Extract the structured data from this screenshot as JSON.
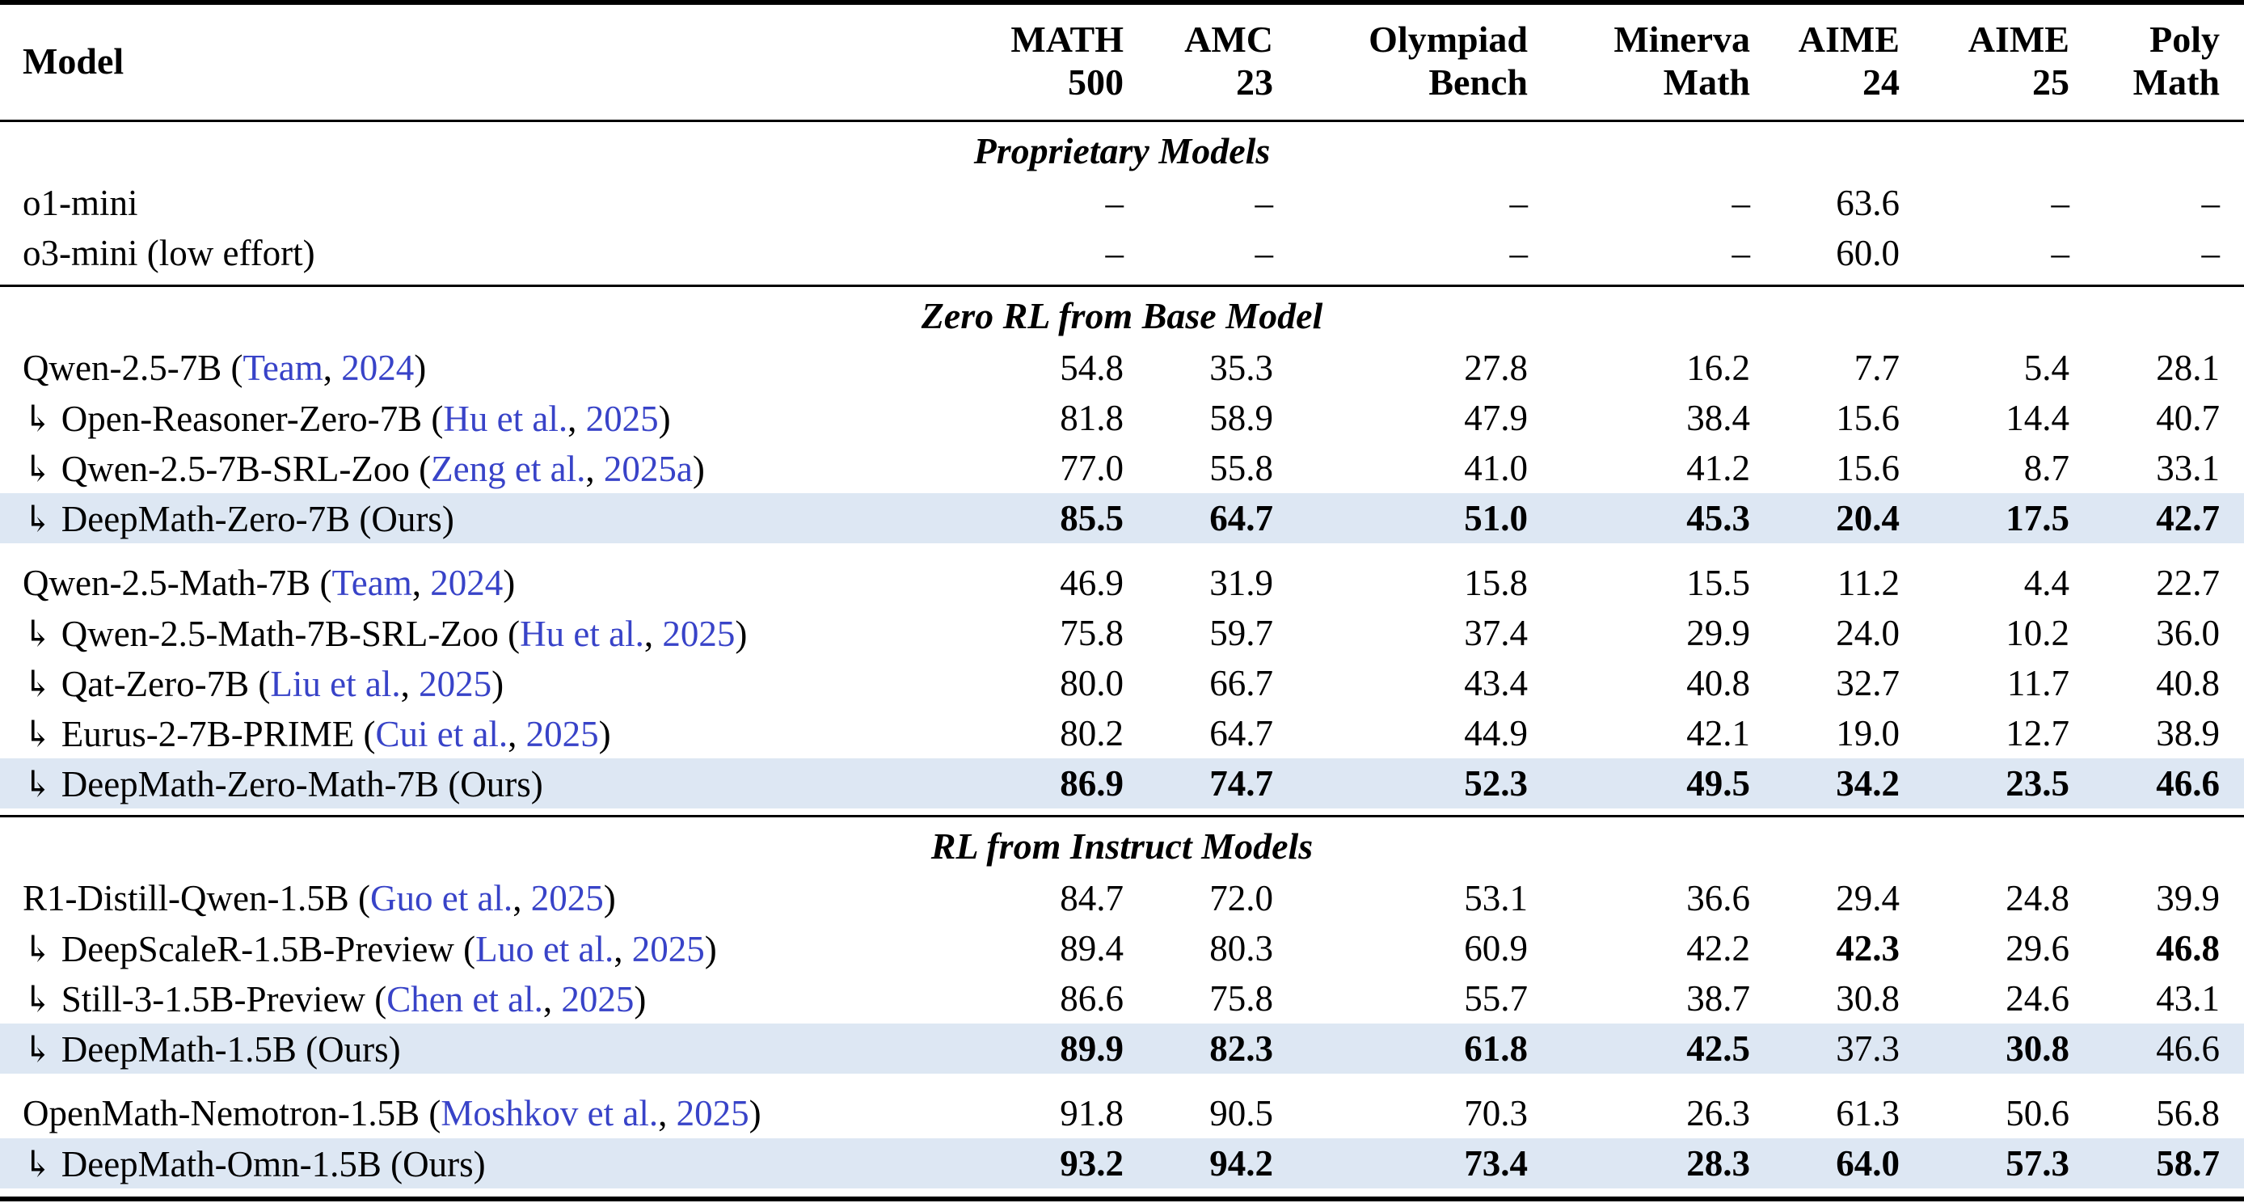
{
  "colors": {
    "highlight": "#dde7f3",
    "citation": "#3843c8",
    "rule": "#000000",
    "text": "#000000"
  },
  "table": {
    "model_col_header": "Model",
    "arrow_symbol": "↳",
    "na_symbol": "–",
    "columns": [
      {
        "line1": "MATH",
        "line2": "500"
      },
      {
        "line1": "AMC",
        "line2": "23"
      },
      {
        "line1": "Olympiad",
        "line2": "Bench"
      },
      {
        "line1": "Minerva",
        "line2": "Math"
      },
      {
        "line1": "AIME",
        "line2": "24"
      },
      {
        "line1": "AIME",
        "line2": "25"
      },
      {
        "line1": "Poly",
        "line2": "Math"
      }
    ],
    "sections": [
      {
        "title": "Proprietary Models",
        "groups": [
          {
            "rows": [
              {
                "arrow": false,
                "name": "o1-mini",
                "values": [
                  "–",
                  "–",
                  "–",
                  "–",
                  "63.6",
                  "–",
                  "–"
                ],
                "bold": [
                  0,
                  0,
                  0,
                  0,
                  0,
                  0,
                  0
                ],
                "highlight": false
              },
              {
                "arrow": false,
                "name": "o3-mini (low effort)",
                "values": [
                  "–",
                  "–",
                  "–",
                  "–",
                  "60.0",
                  "–",
                  "–"
                ],
                "bold": [
                  0,
                  0,
                  0,
                  0,
                  0,
                  0,
                  0
                ],
                "highlight": false
              }
            ]
          }
        ]
      },
      {
        "title": "Zero RL from Base Model",
        "groups": [
          {
            "rows": [
              {
                "arrow": false,
                "name": "Qwen-2.5-7B",
                "cite": {
                  "authors": "Team",
                  "year": "2024"
                },
                "values": [
                  "54.8",
                  "35.3",
                  "27.8",
                  "16.2",
                  "7.7",
                  "5.4",
                  "28.1"
                ],
                "bold": [
                  0,
                  0,
                  0,
                  0,
                  0,
                  0,
                  0
                ],
                "highlight": false
              },
              {
                "arrow": true,
                "name": "Open-Reasoner-Zero-7B",
                "cite": {
                  "authors": "Hu et al.",
                  "year": "2025"
                },
                "values": [
                  "81.8",
                  "58.9",
                  "47.9",
                  "38.4",
                  "15.6",
                  "14.4",
                  "40.7"
                ],
                "bold": [
                  0,
                  0,
                  0,
                  0,
                  0,
                  0,
                  0
                ],
                "highlight": false
              },
              {
                "arrow": true,
                "name": "Qwen-2.5-7B-SRL-Zoo",
                "cite": {
                  "authors": "Zeng et al.",
                  "year": "2025a"
                },
                "values": [
                  "77.0",
                  "55.8",
                  "41.0",
                  "41.2",
                  "15.6",
                  "8.7",
                  "33.1"
                ],
                "bold": [
                  0,
                  0,
                  0,
                  0,
                  0,
                  0,
                  0
                ],
                "highlight": false
              },
              {
                "arrow": true,
                "name": "DeepMath-Zero-7B",
                "suffix": "(Ours)",
                "values": [
                  "85.5",
                  "64.7",
                  "51.0",
                  "45.3",
                  "20.4",
                  "17.5",
                  "42.7"
                ],
                "bold": [
                  1,
                  1,
                  1,
                  1,
                  1,
                  1,
                  1
                ],
                "highlight": true
              }
            ]
          },
          {
            "rows": [
              {
                "arrow": false,
                "name": "Qwen-2.5-Math-7B",
                "cite": {
                  "authors": "Team",
                  "year": "2024"
                },
                "values": [
                  "46.9",
                  "31.9",
                  "15.8",
                  "15.5",
                  "11.2",
                  "4.4",
                  "22.7"
                ],
                "bold": [
                  0,
                  0,
                  0,
                  0,
                  0,
                  0,
                  0
                ],
                "highlight": false
              },
              {
                "arrow": true,
                "name": "Qwen-2.5-Math-7B-SRL-Zoo",
                "cite": {
                  "authors": "Hu et al.",
                  "year": "2025"
                },
                "values": [
                  "75.8",
                  "59.7",
                  "37.4",
                  "29.9",
                  "24.0",
                  "10.2",
                  "36.0"
                ],
                "bold": [
                  0,
                  0,
                  0,
                  0,
                  0,
                  0,
                  0
                ],
                "highlight": false
              },
              {
                "arrow": true,
                "name": "Qat-Zero-7B",
                "cite": {
                  "authors": "Liu et al.",
                  "year": "2025"
                },
                "values": [
                  "80.0",
                  "66.7",
                  "43.4",
                  "40.8",
                  "32.7",
                  "11.7",
                  "40.8"
                ],
                "bold": [
                  0,
                  0,
                  0,
                  0,
                  0,
                  0,
                  0
                ],
                "highlight": false
              },
              {
                "arrow": true,
                "name": "Eurus-2-7B-PRIME",
                "cite": {
                  "authors": "Cui et al.",
                  "year": "2025"
                },
                "values": [
                  "80.2",
                  "64.7",
                  "44.9",
                  "42.1",
                  "19.0",
                  "12.7",
                  "38.9"
                ],
                "bold": [
                  0,
                  0,
                  0,
                  0,
                  0,
                  0,
                  0
                ],
                "highlight": false
              },
              {
                "arrow": true,
                "name": "DeepMath-Zero-Math-7B",
                "suffix": "(Ours)",
                "values": [
                  "86.9",
                  "74.7",
                  "52.3",
                  "49.5",
                  "34.2",
                  "23.5",
                  "46.6"
                ],
                "bold": [
                  1,
                  1,
                  1,
                  1,
                  1,
                  1,
                  1
                ],
                "highlight": true
              }
            ]
          }
        ]
      },
      {
        "title": "RL from Instruct Models",
        "groups": [
          {
            "rows": [
              {
                "arrow": false,
                "name": "R1-Distill-Qwen-1.5B",
                "cite": {
                  "authors": "Guo et al.",
                  "year": "2025"
                },
                "values": [
                  "84.7",
                  "72.0",
                  "53.1",
                  "36.6",
                  "29.4",
                  "24.8",
                  "39.9"
                ],
                "bold": [
                  0,
                  0,
                  0,
                  0,
                  0,
                  0,
                  0
                ],
                "highlight": false
              },
              {
                "arrow": true,
                "name": "DeepScaleR-1.5B-Preview",
                "cite": {
                  "authors": "Luo et al.",
                  "year": "2025"
                },
                "values": [
                  "89.4",
                  "80.3",
                  "60.9",
                  "42.2",
                  "42.3",
                  "29.6",
                  "46.8"
                ],
                "bold": [
                  0,
                  0,
                  0,
                  0,
                  1,
                  0,
                  1
                ],
                "highlight": false
              },
              {
                "arrow": true,
                "name": "Still-3-1.5B-Preview",
                "cite": {
                  "authors": "Chen et al.",
                  "year": "2025"
                },
                "values": [
                  "86.6",
                  "75.8",
                  "55.7",
                  "38.7",
                  "30.8",
                  "24.6",
                  "43.1"
                ],
                "bold": [
                  0,
                  0,
                  0,
                  0,
                  0,
                  0,
                  0
                ],
                "highlight": false
              },
              {
                "arrow": true,
                "name": "DeepMath-1.5B",
                "suffix": "(Ours)",
                "values": [
                  "89.9",
                  "82.3",
                  "61.8",
                  "42.5",
                  "37.3",
                  "30.8",
                  "46.6"
                ],
                "bold": [
                  1,
                  1,
                  1,
                  1,
                  0,
                  1,
                  0
                ],
                "highlight": true
              }
            ]
          },
          {
            "rows": [
              {
                "arrow": false,
                "name": "OpenMath-Nemotron-1.5B",
                "cite": {
                  "authors": "Moshkov et al.",
                  "year": "2025"
                },
                "values": [
                  "91.8",
                  "90.5",
                  "70.3",
                  "26.3",
                  "61.3",
                  "50.6",
                  "56.8"
                ],
                "bold": [
                  0,
                  0,
                  0,
                  0,
                  0,
                  0,
                  0
                ],
                "highlight": false
              },
              {
                "arrow": true,
                "name": "DeepMath-Omn-1.5B",
                "suffix": "(Ours)",
                "values": [
                  "93.2",
                  "94.2",
                  "73.4",
                  "28.3",
                  "64.0",
                  "57.3",
                  "58.7"
                ],
                "bold": [
                  1,
                  1,
                  1,
                  1,
                  1,
                  1,
                  1
                ],
                "highlight": true
              }
            ]
          }
        ]
      }
    ]
  }
}
